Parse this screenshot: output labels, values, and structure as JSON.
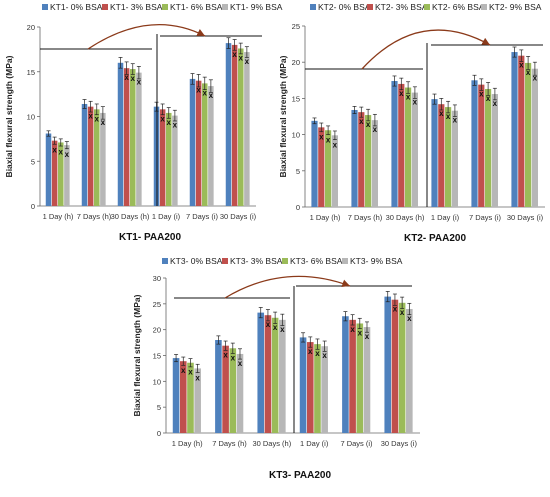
{
  "chart_data": [
    {
      "type": "bar",
      "title": "KT1- PAA200",
      "ylabel": "Biaxial flexural strength (MPa)",
      "ylim": [
        0,
        20
      ],
      "yticks": [
        0,
        5,
        10,
        15,
        20
      ],
      "grid": false,
      "legend_position": "top",
      "categories": [
        "1 Day (h)",
        "7 Days (h)",
        "30 Days (h)",
        "1 Day (i)",
        "7 Days (i)",
        "30 Days (i)"
      ],
      "series": [
        {
          "name": "KT1- 0% BSA",
          "color": "#4f81bd",
          "values": [
            8.1,
            11.4,
            16.0,
            11.1,
            14.2,
            18.2
          ],
          "errors": [
            0.3,
            0.5,
            0.6,
            0.5,
            0.6,
            0.6
          ]
        },
        {
          "name": "KT1- 3% BSA",
          "color": "#c0504d",
          "values": [
            7.3,
            11.1,
            15.4,
            10.8,
            14.0,
            18.0
          ],
          "errors": [
            0.4,
            0.6,
            0.7,
            0.6,
            0.7,
            0.6
          ]
        },
        {
          "name": "KT1- 6% BSA",
          "color": "#9bbb59",
          "values": [
            7.1,
            10.8,
            15.3,
            10.4,
            13.7,
            17.6
          ],
          "errors": [
            0.4,
            0.6,
            0.6,
            0.6,
            0.7,
            0.6
          ]
        },
        {
          "name": "KT1- 9% BSA",
          "color": "#b7b7b7",
          "values": [
            6.8,
            10.4,
            14.9,
            10.1,
            13.4,
            17.2
          ],
          "errors": [
            0.4,
            0.7,
            0.7,
            0.6,
            0.7,
            0.6
          ]
        }
      ],
      "annotations": [
        "x",
        "x",
        "x"
      ]
    },
    {
      "type": "bar",
      "title": "KT2- PAA200",
      "ylabel": "Biaxial flexural strength (MPa)",
      "ylim": [
        0,
        25
      ],
      "yticks": [
        0,
        5,
        10,
        15,
        20,
        25
      ],
      "grid": false,
      "legend_position": "top",
      "categories": [
        "1 Day (h)",
        "7 Days (h)",
        "30 Days (h)",
        "1 Day (i)",
        "7 Days (i)",
        "30 Days (i)"
      ],
      "series": [
        {
          "name": "KT2- 0% BSA",
          "color": "#4f81bd",
          "values": [
            11.9,
            13.4,
            17.4,
            14.9,
            17.5,
            21.4
          ],
          "errors": [
            0.4,
            0.5,
            0.7,
            0.7,
            0.7,
            0.7
          ]
        },
        {
          "name": "KT2- 3% BSA",
          "color": "#c0504d",
          "values": [
            11.0,
            13.1,
            17.0,
            14.2,
            16.9,
            20.9
          ],
          "errors": [
            0.6,
            0.7,
            0.8,
            0.8,
            0.8,
            0.8
          ]
        },
        {
          "name": "KT2- 6% BSA",
          "color": "#9bbb59",
          "values": [
            10.6,
            12.7,
            16.5,
            13.8,
            16.3,
            19.9
          ],
          "errors": [
            0.6,
            0.8,
            0.8,
            0.8,
            0.9,
            0.9
          ]
        },
        {
          "name": "KT2- 9% BSA",
          "color": "#b7b7b7",
          "values": [
            9.9,
            12.0,
            15.8,
            13.3,
            15.6,
            19.1
          ],
          "errors": [
            0.6,
            0.8,
            0.8,
            0.8,
            0.8,
            0.9
          ]
        }
      ],
      "annotations": [
        "x",
        "x",
        "x"
      ]
    },
    {
      "type": "bar",
      "title": "KT3- PAA200",
      "ylabel": "Biaxial flexural strength (MPa)",
      "ylim": [
        0,
        30
      ],
      "yticks": [
        0,
        5,
        10,
        15,
        20,
        25,
        30
      ],
      "grid": false,
      "legend_position": "top",
      "categories": [
        "1 Day (h)",
        "7 Days (h)",
        "30 Days (h)",
        "1 Day (i)",
        "7 Days (i)",
        "30 Days (i)"
      ],
      "series": [
        {
          "name": "KT3- 0% BSA",
          "color": "#4f81bd",
          "values": [
            14.5,
            18.0,
            23.3,
            18.5,
            22.6,
            26.4
          ],
          "errors": [
            0.7,
            0.8,
            1.0,
            0.9,
            0.9,
            1.0
          ]
        },
        {
          "name": "KT3- 3% BSA",
          "color": "#c0504d",
          "values": [
            13.9,
            16.9,
            22.8,
            17.6,
            21.9,
            25.8
          ],
          "errors": [
            0.8,
            0.9,
            1.1,
            1.0,
            1.0,
            1.1
          ]
        },
        {
          "name": "KT3- 6% BSA",
          "color": "#9bbb59",
          "values": [
            13.6,
            16.4,
            22.3,
            17.2,
            21.2,
            25.2
          ],
          "errors": [
            0.8,
            1.0,
            1.1,
            1.0,
            1.0,
            1.1
          ]
        },
        {
          "name": "KT3- 9% BSA",
          "color": "#b7b7b7",
          "values": [
            12.5,
            15.3,
            21.9,
            16.8,
            20.5,
            24.0
          ],
          "errors": [
            0.8,
            1.0,
            1.1,
            1.0,
            1.0,
            1.1
          ]
        }
      ],
      "annotations": [
        "x",
        "x",
        "x"
      ]
    }
  ]
}
